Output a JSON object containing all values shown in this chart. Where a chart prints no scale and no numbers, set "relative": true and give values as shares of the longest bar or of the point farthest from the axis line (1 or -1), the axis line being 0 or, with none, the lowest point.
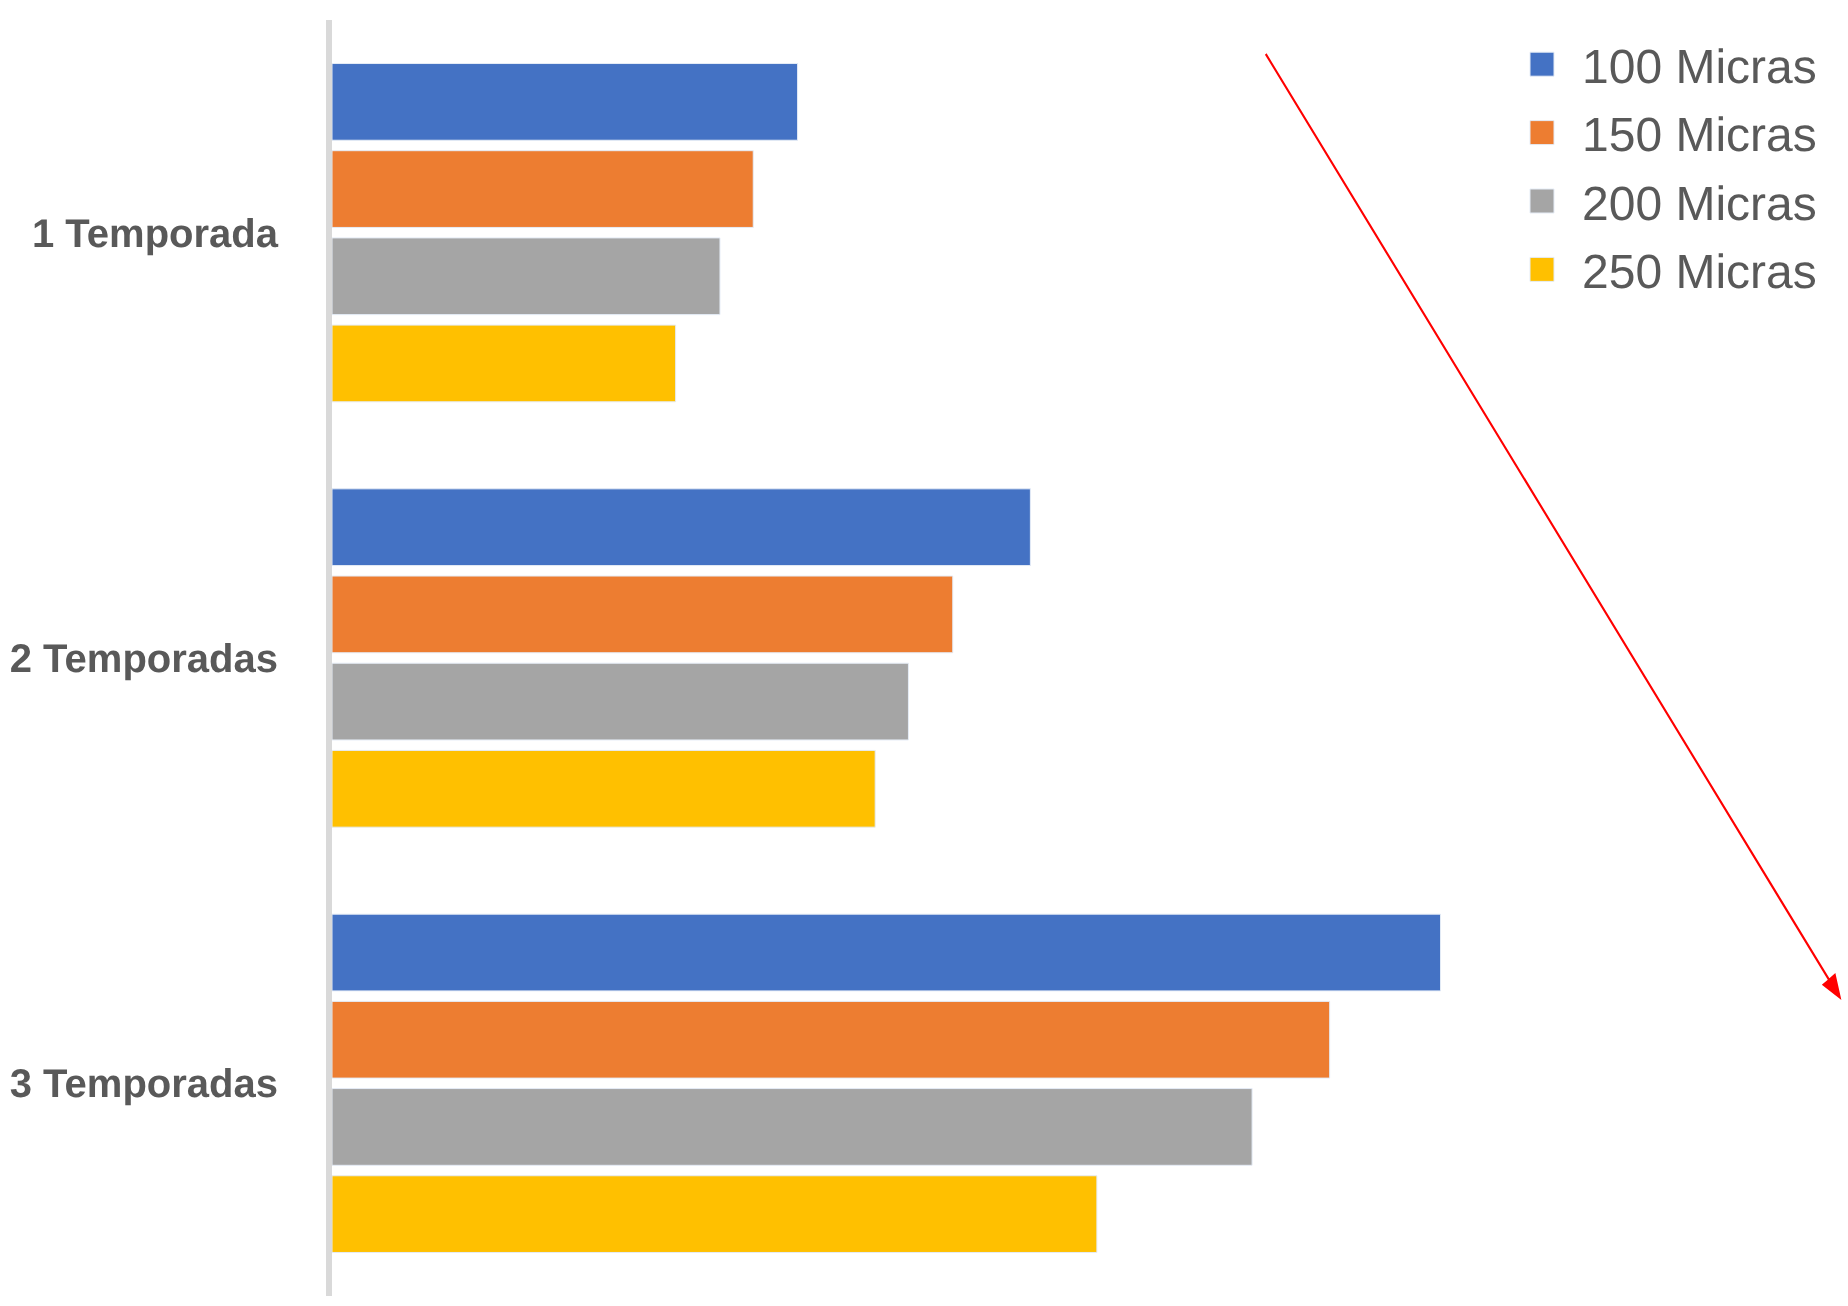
{
  "chart_data": {
    "type": "bar",
    "orientation": "horizontal",
    "relative": true,
    "categories": [
      "1 Temporada",
      "2 Temporadas",
      "3 Temporadas"
    ],
    "series": [
      {
        "name": "100 Micras",
        "color": "#4472c4",
        "values": [
          0.42,
          0.63,
          1.0
        ]
      },
      {
        "name": "150 Micras",
        "color": "#ed7d31",
        "values": [
          0.38,
          0.56,
          0.9
        ]
      },
      {
        "name": "200 Micras",
        "color": "#a5a5a5",
        "values": [
          0.35,
          0.52,
          0.83
        ]
      },
      {
        "name": "250 Micras",
        "color": "#ffc000",
        "values": [
          0.31,
          0.49,
          0.69
        ]
      }
    ],
    "legend": "top right"
  }
}
